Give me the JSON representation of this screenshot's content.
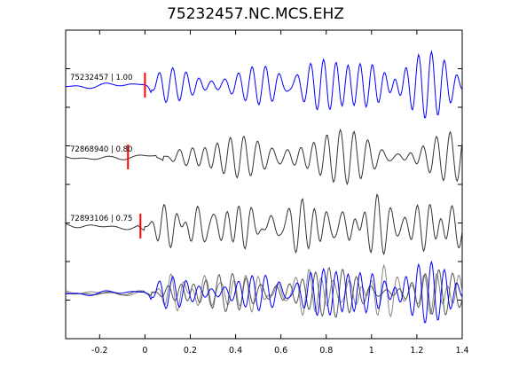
{
  "chart_data": {
    "type": "line",
    "title": "75232457.NC.MCS.EHZ",
    "xlabel": "",
    "ylabel": "",
    "xlim": [
      -0.35,
      1.4
    ],
    "x_ticks": [
      -0.2,
      0,
      0.2,
      0.4,
      0.6,
      0.8,
      1,
      1.2,
      1.4
    ],
    "x_tick_labels": [
      "-0.2",
      "0",
      "0.2",
      "0.4",
      "0.6",
      "0.8",
      "1",
      "1.2",
      "1.4"
    ],
    "grid": false,
    "traces": [
      {
        "label": "75232457 | 1.00",
        "color": "#0000ff",
        "pick_x": 0.0,
        "offset": 0.0,
        "seed": 1
      },
      {
        "label": "72868940 | 0.80",
        "color": "#333333",
        "pick_x": -0.075,
        "offset": 0.05,
        "seed": 2
      },
      {
        "label": "72893106 | 0.75",
        "color": "#333333",
        "pick_x": -0.02,
        "offset": -0.03,
        "seed": 3
      }
    ],
    "stack_colors": [
      "#0000ff",
      "#555555",
      "#888888"
    ],
    "pick_color": "#ff0000"
  }
}
